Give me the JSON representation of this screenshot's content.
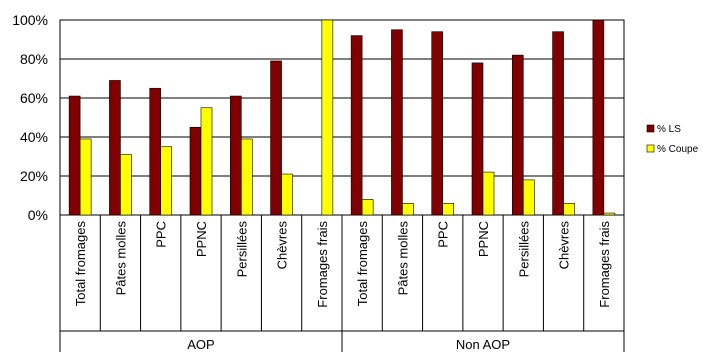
{
  "chart_data": {
    "type": "bar",
    "categories": [
      "Total fromages",
      "Pâtes molles",
      "PPC",
      "PPNC",
      "Persillées",
      "Chèvres",
      "Fromages frais",
      "Total fromages",
      "Pâtes molles",
      "PPC",
      "PPNC",
      "Persillées",
      "Chèvres",
      "Fromages frais"
    ],
    "groups": [
      {
        "label": "AOP",
        "count": 7
      },
      {
        "label": "Non AOP",
        "count": 7
      }
    ],
    "series": [
      {
        "name": "% LS",
        "color": "#800000",
        "values": [
          61,
          69,
          65,
          45,
          61,
          79,
          0,
          92,
          95,
          94,
          78,
          82,
          94,
          100
        ]
      },
      {
        "name": "% Coupe",
        "color": "#ffff00",
        "values": [
          39,
          31,
          35,
          55,
          39,
          21,
          100,
          8,
          6,
          6,
          22,
          18,
          6,
          1
        ]
      }
    ],
    "yticks": [
      "0%",
      "20%",
      "40%",
      "60%",
      "80%",
      "100%"
    ],
    "ylim": [
      0,
      100
    ],
    "grid": true,
    "legend": "right"
  }
}
